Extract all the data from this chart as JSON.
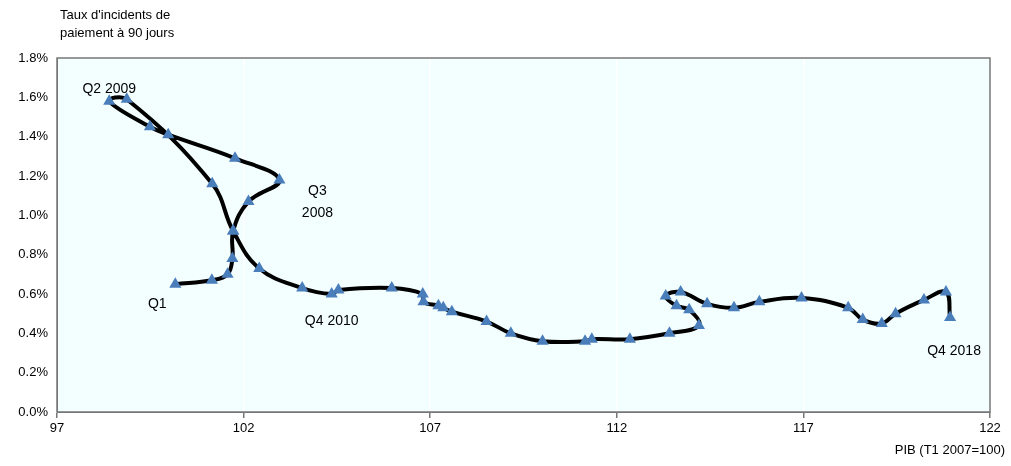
{
  "chart_data": {
    "type": "line",
    "xlabel": "PIB (T1 2007=100)",
    "ylabel": "Taux d'incidents de\npaiement à 90 jours",
    "xlim": [
      97,
      122
    ],
    "xticks": [
      97,
      102,
      107,
      112,
      117,
      122
    ],
    "ylim": [
      0,
      1.8
    ],
    "yticks": [
      {
        "value": 0,
        "label": "0.0%"
      },
      {
        "value": 0.2,
        "label": "0.2%"
      },
      {
        "value": 0.4,
        "label": "0.4%"
      },
      {
        "value": 0.6,
        "label": "0.6%"
      },
      {
        "value": 0.8,
        "label": "0.8%"
      },
      {
        "value": 1.0,
        "label": "1.0%"
      },
      {
        "value": 1.2,
        "label": "1.2%"
      },
      {
        "value": 1.4,
        "label": "1.4%"
      },
      {
        "value": 1.6,
        "label": "1.6%"
      },
      {
        "value": 1.8,
        "label": "1.8%"
      }
    ],
    "grid": "x",
    "marker": "triangle",
    "line_style": "solid",
    "legend": false,
    "series": [
      {
        "color": "#000000",
        "colors": [
          "#4a7ebb",
          "#4a7ebb",
          "#4a7ebb",
          "#4a7ebb",
          "#4a7ebb",
          "#4a7ebb",
          "#4a7ebb",
          "#4a7ebb",
          "#4a7ebb",
          "#4a7ebb",
          "#4a7ebb",
          "#4a7ebb",
          "#4a7ebb",
          "#4a7ebb",
          "#4a7ebb",
          "#4a7ebb",
          "#4a7ebb",
          "#4a7ebb",
          "#4a7ebb",
          "#4a7ebb",
          "#4a7ebb",
          "#4a7ebb",
          "#4a7ebb",
          "#4a7ebb",
          "#4a7ebb",
          "#4a7ebb",
          "#4a7ebb",
          "#4a7ebb",
          "#4a7ebb",
          "#4a7ebb",
          "#4a7ebb",
          "#4a7ebb",
          "#4a7ebb",
          "#4a7ebb",
          "#4a7ebb",
          "#4a7ebb",
          "#4a7ebb",
          "#4a7ebb",
          "#4a7ebb",
          "#4a7ebb",
          "#4a7ebb",
          "#4a7ebb",
          "#4a7ebb",
          "#4a7ebb",
          "#4a7ebb",
          "#4a7ebb",
          "#4a7ebb"
        ],
        "x": [
          100.17,
          101.15,
          101.57,
          101.7,
          101.72,
          102.13,
          102.96,
          101.77,
          99.98,
          99.49,
          98.4,
          98.87,
          101.16,
          101.72,
          102.42,
          103.57,
          104.36,
          104.54,
          105.97,
          106.8,
          106.82,
          107.22,
          107.35,
          107.58,
          108.51,
          109.16,
          110.01,
          111.15,
          111.33,
          112.35,
          113.41,
          114.2,
          113.94,
          113.6,
          113.31,
          113.71,
          114.42,
          115.14,
          115.82,
          116.95,
          118.2,
          118.59,
          119.1,
          119.47,
          120.23,
          120.82,
          120.93
        ],
        "values": [
          0.65,
          0.67,
          0.7,
          0.78,
          0.92,
          1.07,
          1.18,
          1.29,
          1.41,
          1.45,
          1.58,
          1.59,
          1.16,
          0.92,
          0.73,
          0.63,
          0.6,
          0.62,
          0.63,
          0.6,
          0.56,
          0.54,
          0.53,
          0.51,
          0.46,
          0.4,
          0.36,
          0.36,
          0.37,
          0.37,
          0.4,
          0.44,
          0.52,
          0.54,
          0.59,
          0.61,
          0.55,
          0.53,
          0.56,
          0.58,
          0.53,
          0.47,
          0.45,
          0.5,
          0.57,
          0.61,
          0.48
        ]
      }
    ],
    "annotations": [
      {
        "text": "Q1",
        "x": 100.17,
        "y": 0.65
      },
      {
        "text": "Q3\n2008",
        "x": 102.96,
        "y": 1.18
      },
      {
        "text": "Q2 2009",
        "x": 98.4,
        "y": 1.58
      },
      {
        "text": "Q4 2010",
        "x": 104.36,
        "y": 0.6
      },
      {
        "text": "Q4 2018",
        "x": 120.93,
        "y": 0.48
      }
    ]
  }
}
